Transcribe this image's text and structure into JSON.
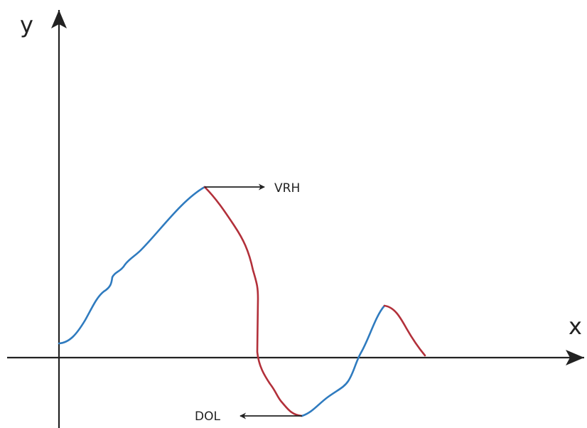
{
  "axes": {
    "y_label": "y",
    "x_label": "x"
  },
  "annotations": {
    "peak": "VRH",
    "trough": "DOL"
  }
}
